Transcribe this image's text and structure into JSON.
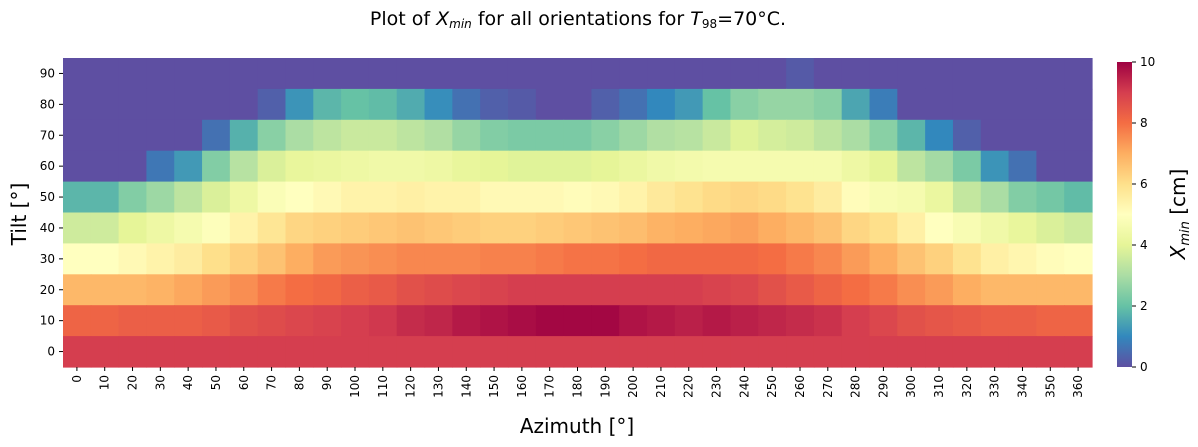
{
  "chart_data": {
    "type": "heatmap",
    "title": {
      "prefix": "Plot of ",
      "x_var": "X",
      "x_sub": "min",
      "middle": " for all orientations for ",
      "t_var": "T",
      "t_sub": "98",
      "suffix": "=70°C."
    },
    "xlabel": "Azimuth [°]",
    "ylabel": "Tilt [°]",
    "x_categories": [
      "0",
      "10",
      "20",
      "30",
      "40",
      "50",
      "60",
      "70",
      "80",
      "90",
      "100",
      "110",
      "120",
      "130",
      "140",
      "150",
      "160",
      "170",
      "180",
      "190",
      "200",
      "210",
      "220",
      "230",
      "240",
      "250",
      "260",
      "270",
      "280",
      "290",
      "300",
      "310",
      "320",
      "330",
      "340",
      "350",
      "360"
    ],
    "y_categories": [
      "0",
      "10",
      "20",
      "30",
      "40",
      "50",
      "60",
      "70",
      "80",
      "90"
    ],
    "values_rows_from_tilt_90_to_0": [
      [
        0,
        0,
        0,
        0,
        0,
        0,
        0,
        0,
        0,
        0,
        0,
        0,
        0,
        0,
        0,
        0,
        0,
        0,
        0,
        0,
        0,
        0,
        0,
        0,
        0,
        0,
        0.2,
        0,
        0,
        0,
        0,
        0,
        0,
        0,
        0,
        0,
        0
      ],
      [
        0,
        0,
        0,
        0,
        0,
        0,
        0,
        0.3,
        1.2,
        1.8,
        2.0,
        1.9,
        1.6,
        1.1,
        0.6,
        0.3,
        0.2,
        0,
        0,
        0.3,
        0.6,
        1.0,
        1.3,
        2.0,
        2.5,
        2.7,
        2.7,
        2.5,
        1.5,
        0.8,
        0,
        0,
        0,
        0,
        0,
        0,
        0
      ],
      [
        0,
        0,
        0,
        0,
        0,
        0.6,
        1.7,
        2.5,
        3.0,
        3.3,
        3.5,
        3.5,
        3.3,
        3.1,
        2.7,
        2.4,
        2.3,
        2.3,
        2.3,
        2.5,
        2.8,
        3.1,
        3.2,
        3.5,
        3.9,
        3.7,
        3.6,
        3.3,
        3.0,
        2.5,
        1.8,
        1.0,
        0.3,
        0,
        0,
        0,
        0
      ],
      [
        0,
        0,
        0,
        0.7,
        1.3,
        2.4,
        3.2,
        3.8,
        4.1,
        4.2,
        4.3,
        4.4,
        4.4,
        4.3,
        4.1,
        4.0,
        3.9,
        3.9,
        3.9,
        4.0,
        4.2,
        4.4,
        4.5,
        4.6,
        4.6,
        4.6,
        4.6,
        4.6,
        4.3,
        4.0,
        3.3,
        2.9,
        2.3,
        1.2,
        0.6,
        0,
        0
      ],
      [
        1.8,
        1.8,
        2.4,
        2.8,
        3.3,
        3.8,
        4.3,
        4.8,
        5.0,
        5.2,
        5.4,
        5.4,
        5.5,
        5.4,
        5.4,
        5.2,
        5.2,
        5.2,
        5.1,
        5.2,
        5.4,
        5.7,
        5.9,
        6.1,
        6.2,
        6.1,
        5.9,
        5.6,
        5.1,
        4.7,
        4.6,
        4.2,
        3.4,
        3.0,
        2.4,
        2.2,
        1.9
      ],
      [
        3.6,
        3.6,
        4.0,
        4.3,
        4.6,
        4.9,
        5.4,
        5.8,
        6.2,
        6.3,
        6.4,
        6.5,
        6.6,
        6.5,
        6.4,
        6.3,
        6.3,
        6.4,
        6.5,
        6.6,
        6.7,
        6.9,
        7.0,
        7.1,
        7.2,
        7.0,
        6.8,
        6.6,
        6.2,
        6.0,
        5.5,
        5.0,
        4.7,
        4.4,
        4.1,
        3.8,
        3.6
      ],
      [
        5.0,
        5.0,
        5.2,
        5.4,
        5.6,
        6.0,
        6.3,
        6.6,
        7.0,
        7.3,
        7.4,
        7.5,
        7.6,
        7.6,
        7.6,
        7.7,
        7.7,
        7.8,
        7.9,
        7.9,
        8.0,
        8.1,
        8.1,
        8.1,
        8.1,
        8.0,
        7.8,
        7.6,
        7.3,
        7.0,
        6.6,
        6.3,
        5.9,
        5.5,
        5.3,
        5.1,
        5.0
      ],
      [
        6.8,
        6.8,
        6.8,
        6.9,
        7.1,
        7.3,
        7.5,
        7.8,
        8.0,
        8.1,
        8.3,
        8.4,
        8.6,
        8.7,
        8.8,
        8.9,
        9.0,
        9.0,
        9.0,
        9.0,
        9.0,
        9.0,
        9.0,
        8.9,
        8.8,
        8.6,
        8.4,
        8.2,
        8.0,
        7.8,
        7.5,
        7.3,
        7.0,
        6.8,
        6.8,
        6.8,
        6.8
      ],
      [
        8.2,
        8.2,
        8.3,
        8.3,
        8.3,
        8.4,
        8.6,
        8.7,
        8.8,
        8.9,
        9.0,
        9.1,
        9.3,
        9.4,
        9.6,
        9.7,
        9.8,
        9.9,
        9.9,
        9.9,
        9.7,
        9.6,
        9.5,
        9.6,
        9.5,
        9.4,
        9.3,
        9.2,
        9.0,
        8.8,
        8.6,
        8.5,
        8.4,
        8.3,
        8.3,
        8.2,
        8.2
      ],
      [
        9.0,
        9.0,
        9.0,
        9.0,
        9.0,
        9.0,
        9.0,
        9.0,
        9.0,
        9.0,
        9.0,
        9.0,
        9.0,
        9.0,
        9.0,
        9.0,
        9.0,
        9.0,
        9.0,
        9.0,
        9.0,
        9.0,
        9.0,
        9.0,
        9.0,
        9.0,
        9.0,
        9.0,
        9.0,
        9.0,
        9.0,
        9.0,
        9.0,
        9.0,
        9.0,
        9.0,
        9.0
      ]
    ],
    "colorbar": {
      "range": [
        0,
        10
      ],
      "ticks": [
        "0",
        "2",
        "4",
        "6",
        "8",
        "10"
      ],
      "label": {
        "var": "X",
        "sub": "min",
        "unit": " [cm]"
      }
    },
    "colormap": "Spectral_r",
    "colormap_stops": [
      "#5e4fa2",
      "#3288bd",
      "#66c2a5",
      "#abdda4",
      "#e6f598",
      "#ffffbf",
      "#fee08b",
      "#fdae61",
      "#f46d43",
      "#d53e4f",
      "#9e0142"
    ]
  }
}
